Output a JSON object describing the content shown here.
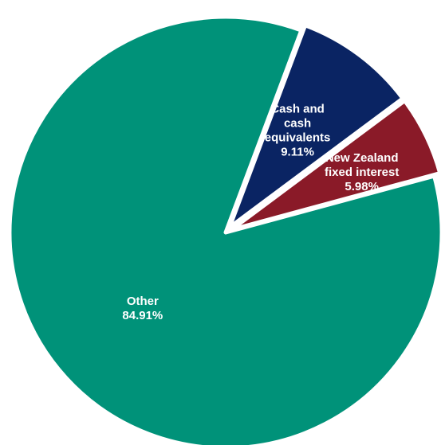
{
  "chart_data": {
    "type": "pie",
    "slices": [
      {
        "category": "Cash and cash equivalents",
        "label_lines": [
          "Cash and",
          "cash",
          "equivalents"
        ],
        "value": 9.11,
        "value_label": "9.11%",
        "color": "#0a2463"
      },
      {
        "category": "New Zealand fixed interest",
        "label_lines": [
          "New Zealand",
          "fixed interest"
        ],
        "value": 5.98,
        "value_label": "5.98%",
        "color": "#8a1a28"
      },
      {
        "category": "Other",
        "label_lines": [
          "Other"
        ],
        "value": 84.91,
        "value_label": "84.91%",
        "color": "#009279"
      }
    ],
    "start_angle_deg": 20.5,
    "direction": "clockwise",
    "exploded_slices": [
      "Cash and cash equivalents",
      "New Zealand fixed interest"
    ],
    "legend": "none",
    "label_color": "#ffffff",
    "background": "#ffffff"
  }
}
